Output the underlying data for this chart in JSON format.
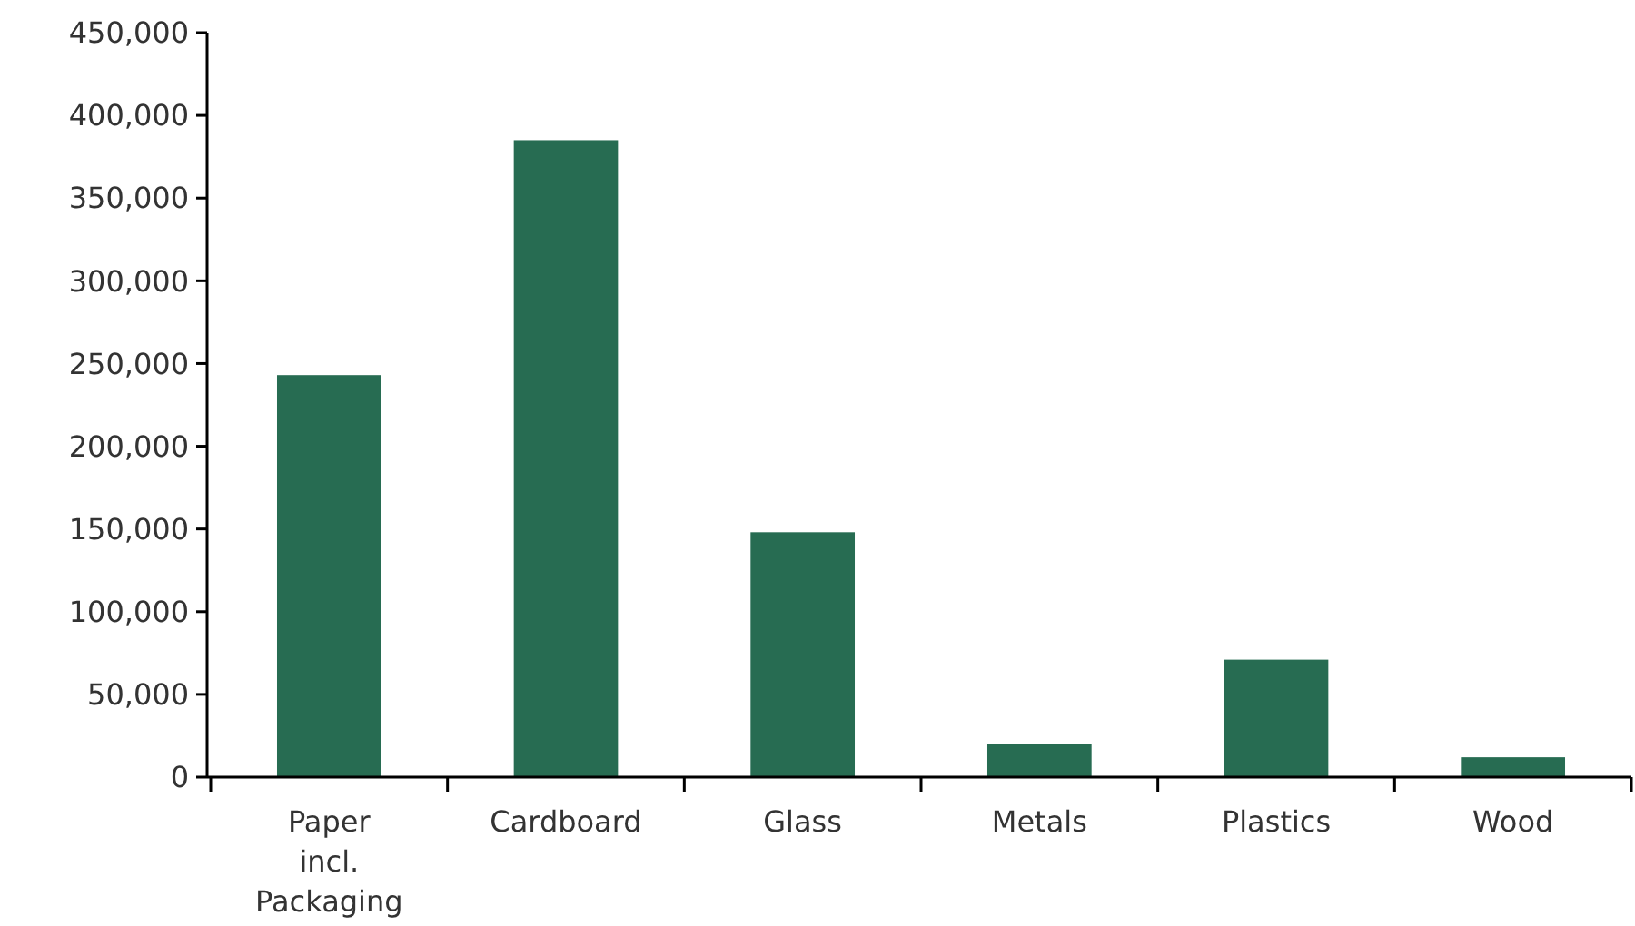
{
  "chart_data": {
    "type": "bar",
    "categories": [
      "Paper incl. Packaging",
      "Cardboard",
      "Glass",
      "Metals",
      "Plastics",
      "Wood"
    ],
    "values": [
      243000,
      385000,
      148000,
      20000,
      71000,
      12000
    ],
    "color": "#276c52",
    "ylim": [
      0,
      450000
    ],
    "yticks": [
      {
        "value": 0,
        "label": "0"
      },
      {
        "value": 50000,
        "label": "50,000"
      },
      {
        "value": 100000,
        "label": "100,000"
      },
      {
        "value": 150000,
        "label": "150,000"
      },
      {
        "value": 200000,
        "label": "200,000"
      },
      {
        "value": 250000,
        "label": "250,000"
      },
      {
        "value": 300000,
        "label": "300,000"
      },
      {
        "value": 350000,
        "label": "350,000"
      },
      {
        "value": 400000,
        "label": "400,000"
      },
      {
        "value": 450000,
        "label": "450,000"
      }
    ],
    "grid": false
  }
}
